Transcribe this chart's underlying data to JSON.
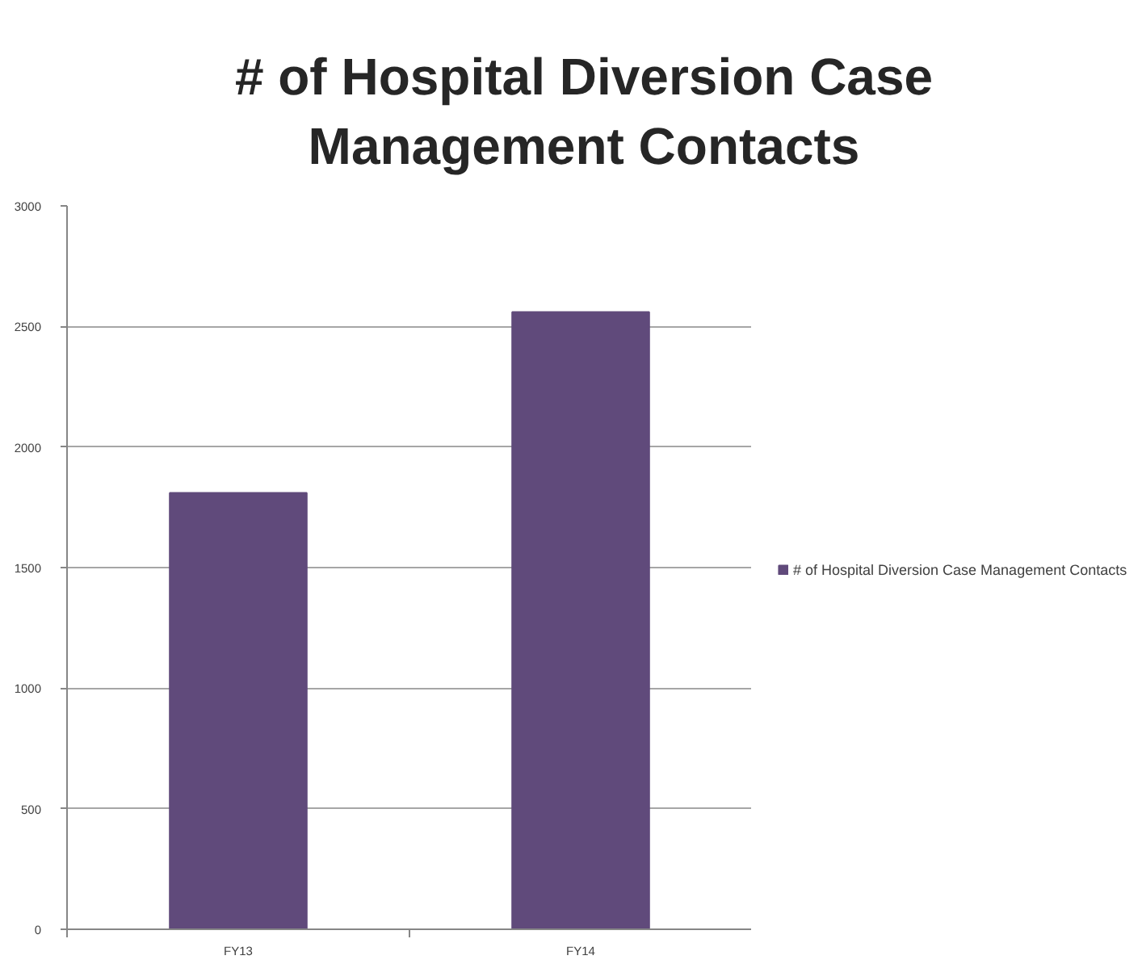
{
  "chart_data": {
    "type": "bar",
    "title": "# of Hospital Diversion Case Management Contacts",
    "categories": [
      "FY13",
      "FY14"
    ],
    "series": [
      {
        "name": "# of Hospital Diversion Case Management Contacts",
        "color": "#604a7b",
        "values": [
          1810,
          2560
        ]
      }
    ],
    "ylim": [
      0,
      3000
    ],
    "yticks": [
      0,
      500,
      1000,
      1500,
      2000,
      2500,
      3000
    ],
    "grid": "y",
    "legend": "right"
  }
}
